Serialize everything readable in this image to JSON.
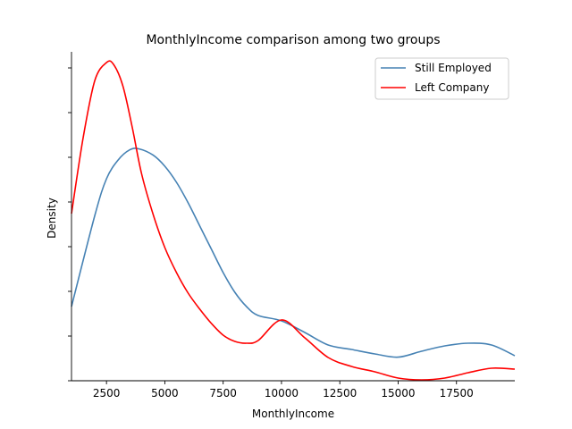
{
  "chart_data": {
    "type": "line",
    "title": "MonthlyIncome comparison among two groups",
    "xlabel": "MonthlyIncome",
    "ylabel": "Density",
    "xlim": [
      1000,
      20000
    ],
    "ylim": [
      0,
      0.000184
    ],
    "xticks": [
      2500,
      5000,
      7500,
      10000,
      12500,
      15000,
      17500
    ],
    "xtick_labels": [
      "2500",
      "5000",
      "7500",
      "10000",
      "12500",
      "15000",
      "17500"
    ],
    "yticks": [
      0,
      2.5e-05,
      5e-05,
      7.5e-05,
      0.0001,
      0.000125,
      0.00015,
      0.000175
    ],
    "yticks_labeled": false,
    "grid": false,
    "legend": "top-right",
    "series": [
      {
        "name": "Still Employed",
        "color": "#4682b4",
        "x": [
          1000,
          2000,
          2500,
          3000,
          3500,
          3900,
          4500,
          5000,
          5500,
          6000,
          6500,
          7000,
          7500,
          8000,
          8500,
          9000,
          10000,
          11000,
          12000,
          13000,
          14000,
          15000,
          16000,
          17000,
          18000,
          19000,
          20000
        ],
        "y": [
          4.15e-05,
          9.25e-05,
          0.000113,
          0.0001235,
          0.0001292,
          0.0001297,
          0.0001262,
          0.00012,
          0.000111,
          9.95e-05,
          8.65e-05,
          7.35e-05,
          6.05e-05,
          4.95e-05,
          4.15e-05,
          3.65e-05,
          3.35e-05,
          2.7e-05,
          2e-05,
          1.75e-05,
          1.5e-05,
          1.32e-05,
          1.65e-05,
          1.95e-05,
          2.1e-05,
          2e-05,
          1.4e-05
        ]
      },
      {
        "name": "Left Company",
        "color": "#ff0000",
        "x": [
          1000,
          1500,
          2000,
          2500,
          2800,
          3200,
          3600,
          4000,
          4500,
          5000,
          5500,
          6000,
          6500,
          7000,
          7500,
          8000,
          8500,
          9000,
          10000,
          11000,
          12000,
          13000,
          14000,
          15000,
          16000,
          17000,
          18000,
          19000,
          20000
        ],
        "y": [
          9.35e-05,
          0.000136,
          0.000168,
          0.000178,
          0.000177,
          0.000165,
          0.000142,
          0.000116,
          9.3e-05,
          7.45e-05,
          6.05e-05,
          4.9e-05,
          4e-05,
          3.2e-05,
          2.55e-05,
          2.2e-05,
          2.1e-05,
          2.25e-05,
          3.4e-05,
          2.4e-05,
          1.3e-05,
          8e-06,
          5e-06,
          1.5e-06,
          5e-07,
          1.5e-06,
          4.5e-06,
          7e-06,
          6.5e-06
        ]
      }
    ]
  }
}
